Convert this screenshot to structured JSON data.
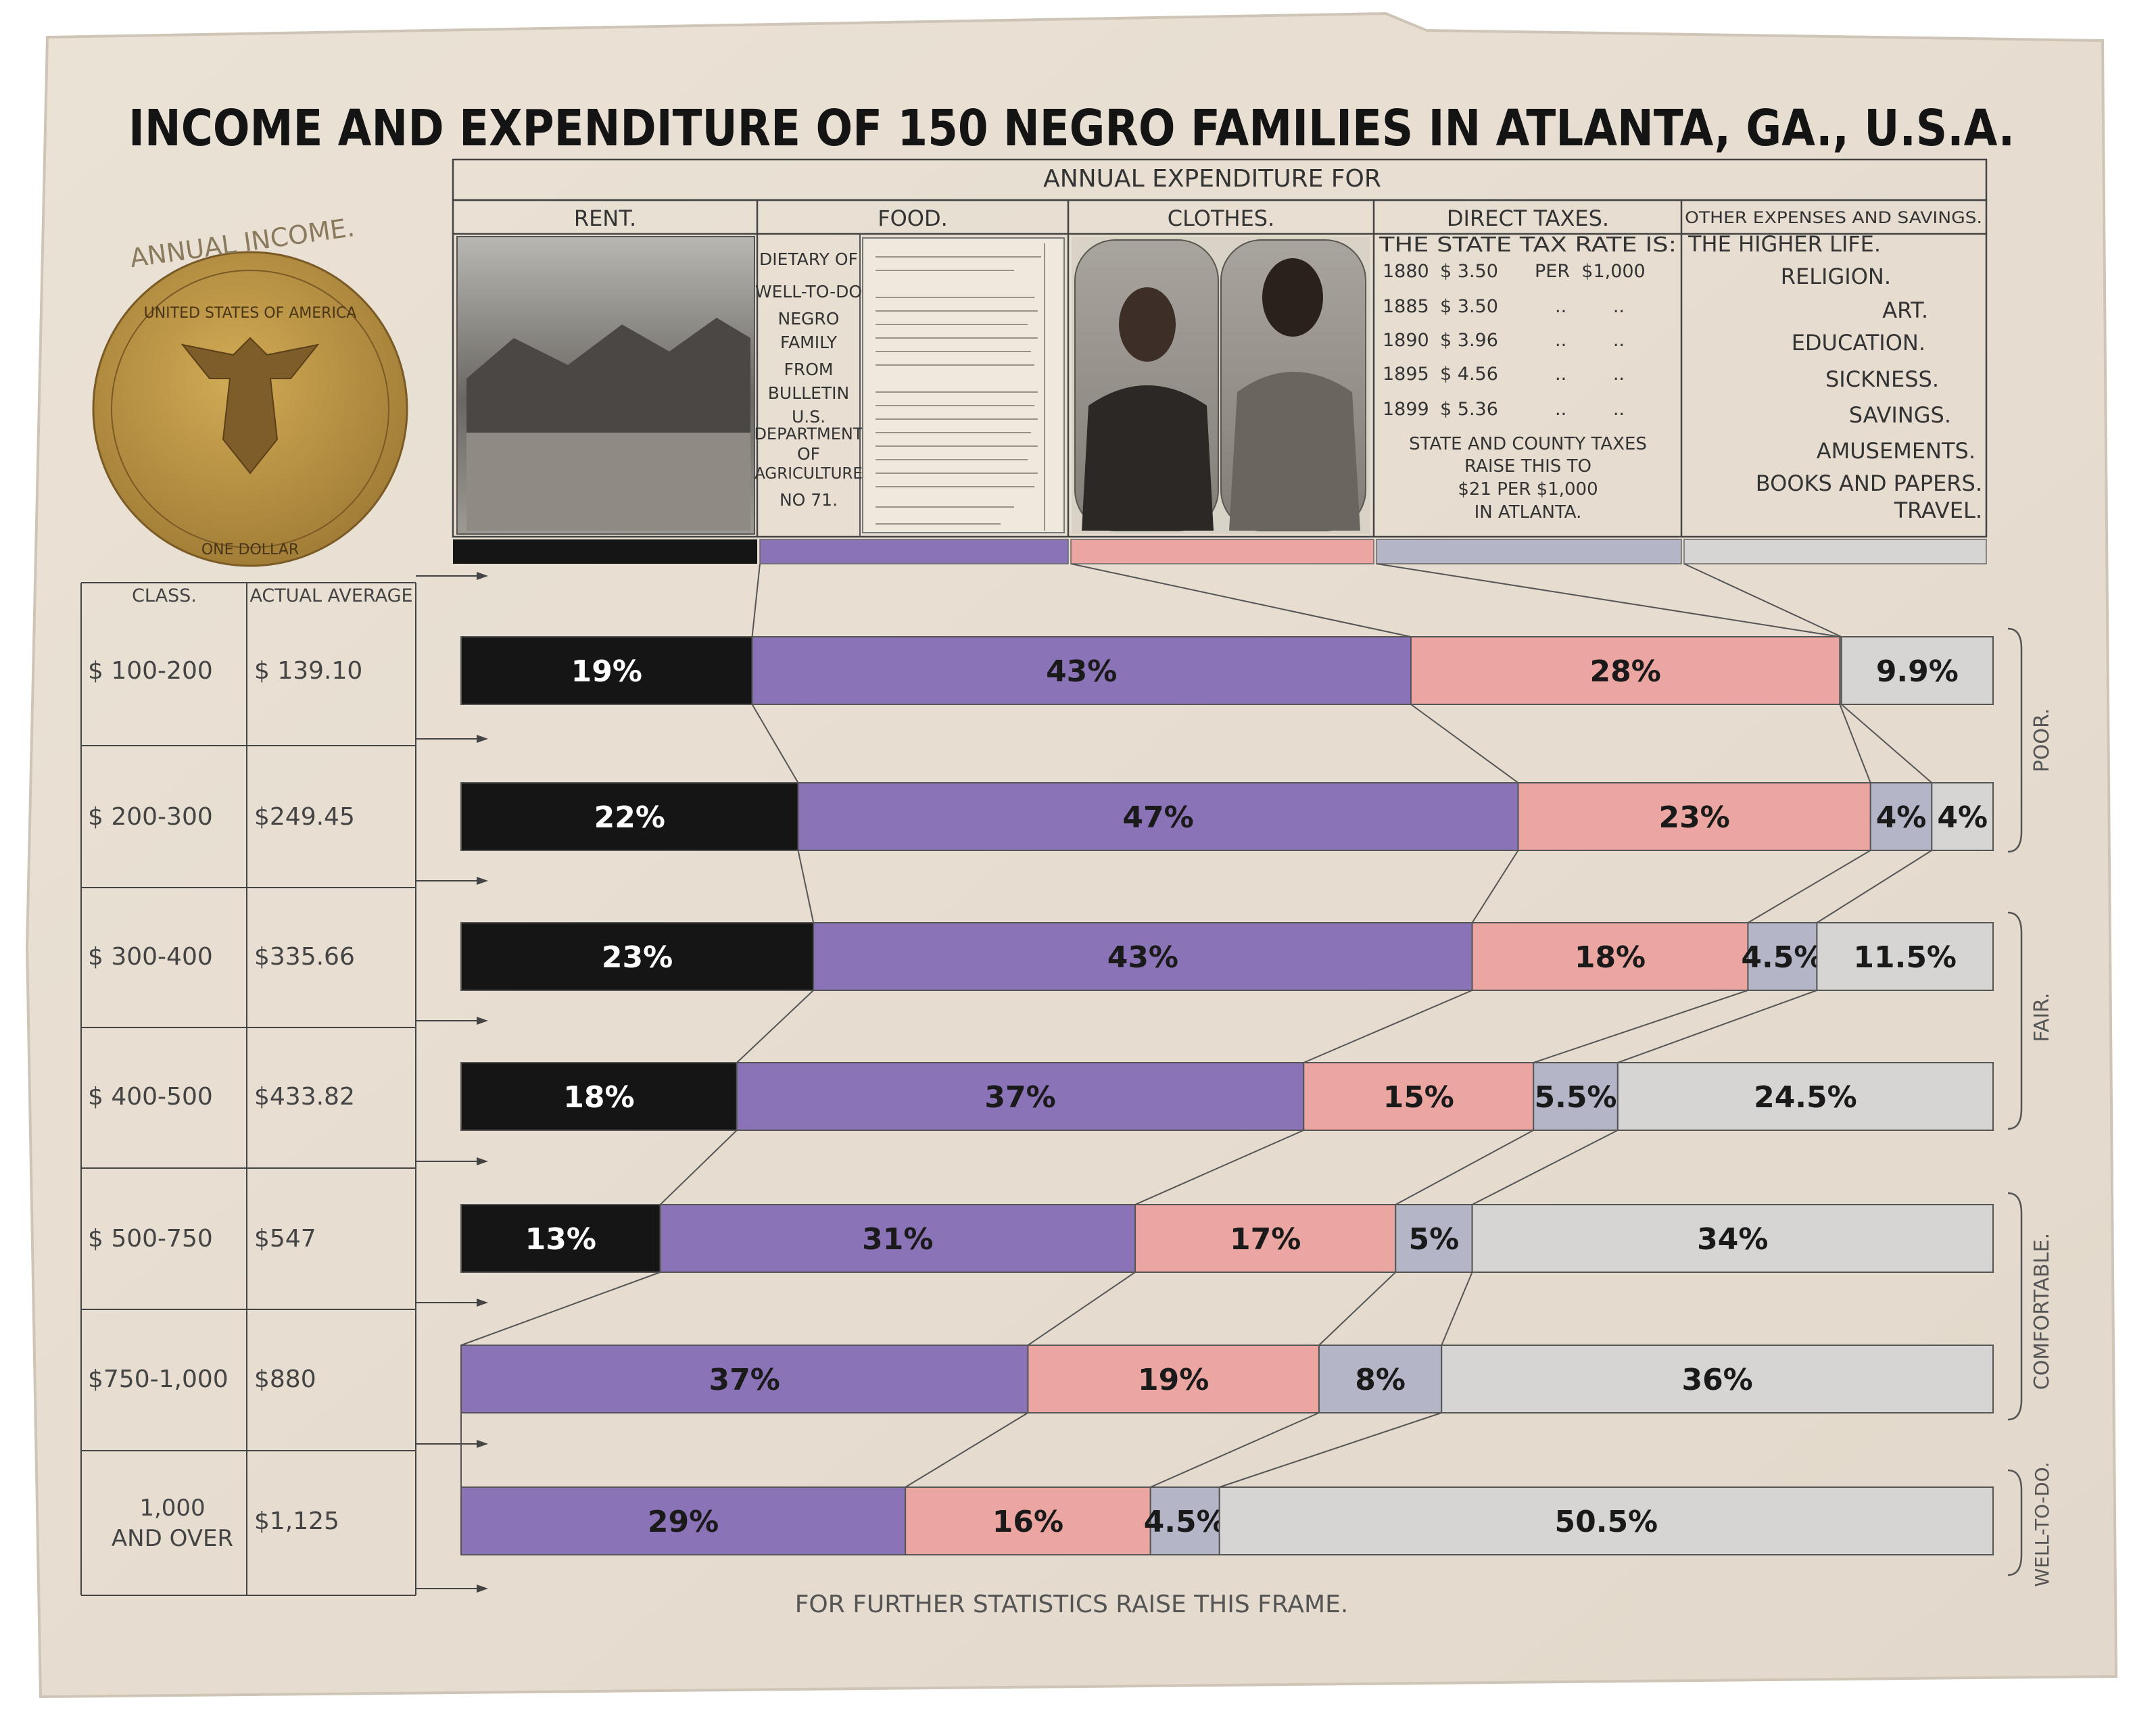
{
  "title": "INCOME AND EXPENDITURE OF 150 NEGRO FAMILIES IN ATLANTA, GA., U.S.A.",
  "header": {
    "annual_expenditure_for": "ANNUAL EXPENDITURE FOR",
    "columns": [
      {
        "label": "RENT.",
        "color": "#151515"
      },
      {
        "label": "FOOD.",
        "color": "#8b73b8"
      },
      {
        "label": "CLOTHES.",
        "color": "#eba6a1"
      },
      {
        "label": "DIRECT TAXES.",
        "color": "#b4b6c8"
      },
      {
        "label": "OTHER EXPENSES AND SAVINGS.",
        "color": "#d6d5d3"
      }
    ]
  },
  "food_panel": [
    "DIETARY OF",
    "WELL-TO-DO",
    "NEGRO",
    "FAMILY",
    "FROM",
    "BULLETIN",
    "U.S.",
    "DEPARTMENT",
    "OF",
    "AGRICULTURE",
    "NO 71."
  ],
  "taxes_panel": {
    "heading": "THE STATE TAX RATE IS:",
    "rates": [
      {
        "year": "1880",
        "rate": "$ 3.50",
        "note": "PER  $1,000"
      },
      {
        "year": "1885",
        "rate": "$ 3.50",
        "note": "..        .."
      },
      {
        "year": "1890",
        "rate": "$ 3.96",
        "note": "..        .."
      },
      {
        "year": "1895",
        "rate": "$ 4.56",
        "note": "..        .."
      },
      {
        "year": "1899",
        "rate": "$ 5.36",
        "note": "..        .."
      }
    ],
    "note_lines": [
      "STATE AND COUNTY TAXES",
      "RAISE THIS TO",
      "$21 PER $1,000",
      "IN ATLANTA."
    ]
  },
  "other_panel": [
    "THE HIGHER LIFE.",
    "RELIGION.",
    "ART.",
    "EDUCATION.",
    "SICKNESS.",
    "SAVINGS.",
    "AMUSEMENTS.",
    "BOOKS AND PAPERS.",
    "TRAVEL."
  ],
  "coin": {
    "arc_label": "ANNUAL INCOME.",
    "inscription": "UNITED STATES OF AMERICA",
    "bottom": "ONE DOLLAR",
    "color": "#b8913f"
  },
  "table_headers": {
    "class": "CLASS.",
    "average": "ACTUAL AVERAGE"
  },
  "brackets": [
    {
      "label": "POOR."
    },
    {
      "label": "FAIR."
    },
    {
      "label": "COMFORTABLE."
    },
    {
      "label": "WELL-TO-DO."
    }
  ],
  "footer": "FOR FURTHER STATISTICS RAISE THIS FRAME.",
  "chart_data": {
    "type": "bar",
    "orientation": "horizontal-stacked-100",
    "series_names": [
      "RENT.",
      "FOOD.",
      "CLOTHES.",
      "DIRECT TAXES.",
      "OTHER EXPENSES AND SAVINGS."
    ],
    "rows": [
      {
        "class": "$ 100-200",
        "average": "$ 139.10",
        "values": [
          19,
          43,
          28,
          0.1,
          9.9
        ],
        "labels": [
          "19%",
          "43%",
          "28%",
          "",
          "9.9%"
        ]
      },
      {
        "class": "$ 200-300",
        "average": "$249.45",
        "values": [
          22,
          47,
          23,
          4,
          4
        ],
        "labels": [
          "22%",
          "47%",
          "23%",
          "4%",
          "4%"
        ]
      },
      {
        "class": "$ 300-400",
        "average": "$335.66",
        "values": [
          23,
          43,
          18,
          4.5,
          11.5
        ],
        "labels": [
          "23%",
          "43%",
          "18%",
          "4.5%",
          "11.5%"
        ]
      },
      {
        "class": "$ 400-500",
        "average": "$433.82",
        "values": [
          18,
          37,
          15,
          5.5,
          24.5
        ],
        "labels": [
          "18%",
          "37%",
          "15%",
          "5.5%",
          "24.5%"
        ]
      },
      {
        "class": "$ 500-750",
        "average": "$547",
        "values": [
          13,
          31,
          17,
          5,
          34
        ],
        "labels": [
          "13%",
          "31%",
          "17%",
          "5%",
          "34%"
        ]
      },
      {
        "class": "$750-1,000",
        "average": "$880",
        "values": [
          0,
          37,
          19,
          8,
          36
        ],
        "labels": [
          "",
          "37%",
          "19%",
          "8%",
          "36%"
        ]
      },
      {
        "class": "1,000 AND OVER",
        "average": "$1,125",
        "values": [
          0,
          29,
          16,
          4.5,
          50.5
        ],
        "labels": [
          "",
          "29%",
          "16%",
          "4.5%",
          "50.5%"
        ]
      }
    ]
  }
}
